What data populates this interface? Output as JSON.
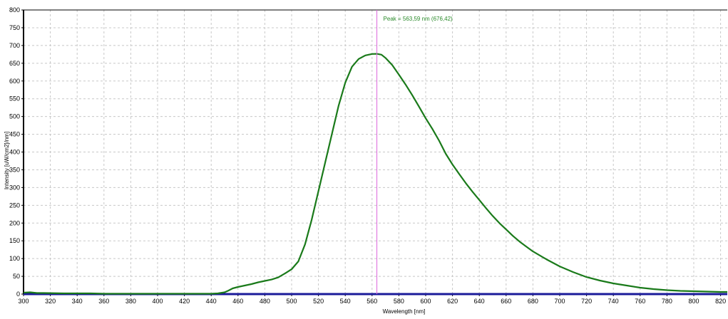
{
  "chart_data": {
    "type": "line",
    "title": "",
    "xlabel": "Wavelength [nm]",
    "ylabel": "Intensity [uW/cm2]/nm]",
    "xlim": [
      300,
      825
    ],
    "ylim": [
      0,
      800
    ],
    "xticks": [
      300,
      320,
      340,
      360,
      380,
      400,
      420,
      440,
      460,
      480,
      500,
      520,
      540,
      560,
      580,
      600,
      620,
      640,
      660,
      680,
      700,
      720,
      740,
      760,
      780,
      800,
      820
    ],
    "yticks": [
      0,
      50,
      100,
      150,
      200,
      250,
      300,
      350,
      400,
      450,
      500,
      550,
      600,
      650,
      700,
      750,
      800
    ],
    "grid": true,
    "peak_marker": {
      "x": 563.59,
      "label": "Peak = 563,59 nm (676,42)"
    },
    "series": [
      {
        "color": "#1a7a1a",
        "points": [
          [
            300,
            4
          ],
          [
            305,
            5
          ],
          [
            310,
            3
          ],
          [
            315,
            3
          ],
          [
            330,
            2
          ],
          [
            350,
            2
          ],
          [
            360,
            1
          ],
          [
            380,
            1
          ],
          [
            400,
            1
          ],
          [
            420,
            1
          ],
          [
            440,
            1
          ],
          [
            445,
            2
          ],
          [
            450,
            5
          ],
          [
            453,
            10
          ],
          [
            456,
            16
          ],
          [
            460,
            20
          ],
          [
            465,
            24
          ],
          [
            470,
            28
          ],
          [
            475,
            33
          ],
          [
            480,
            37
          ],
          [
            485,
            41
          ],
          [
            490,
            47
          ],
          [
            495,
            58
          ],
          [
            500,
            70
          ],
          [
            505,
            92
          ],
          [
            510,
            140
          ],
          [
            515,
            210
          ],
          [
            520,
            290
          ],
          [
            525,
            370
          ],
          [
            530,
            450
          ],
          [
            535,
            530
          ],
          [
            540,
            595
          ],
          [
            545,
            640
          ],
          [
            550,
            662
          ],
          [
            555,
            672
          ],
          [
            560,
            676
          ],
          [
            563.59,
            676.42
          ],
          [
            567,
            674
          ],
          [
            570,
            665
          ],
          [
            575,
            645
          ],
          [
            580,
            618
          ],
          [
            585,
            590
          ],
          [
            590,
            560
          ],
          [
            595,
            528
          ],
          [
            600,
            495
          ],
          [
            605,
            465
          ],
          [
            610,
            432
          ],
          [
            615,
            395
          ],
          [
            620,
            365
          ],
          [
            625,
            338
          ],
          [
            630,
            312
          ],
          [
            635,
            288
          ],
          [
            640,
            265
          ],
          [
            645,
            242
          ],
          [
            650,
            220
          ],
          [
            655,
            200
          ],
          [
            660,
            182
          ],
          [
            665,
            164
          ],
          [
            670,
            148
          ],
          [
            675,
            134
          ],
          [
            680,
            120
          ],
          [
            690,
            98
          ],
          [
            700,
            78
          ],
          [
            710,
            62
          ],
          [
            720,
            48
          ],
          [
            730,
            38
          ],
          [
            740,
            30
          ],
          [
            750,
            24
          ],
          [
            760,
            18
          ],
          [
            770,
            14
          ],
          [
            780,
            11
          ],
          [
            790,
            9
          ],
          [
            800,
            8
          ],
          [
            810,
            7
          ],
          [
            820,
            6
          ],
          [
            825,
            6
          ]
        ]
      },
      {
        "color": "#1a1a9a",
        "points": [
          [
            300,
            0
          ],
          [
            825,
            0
          ]
        ]
      }
    ]
  }
}
